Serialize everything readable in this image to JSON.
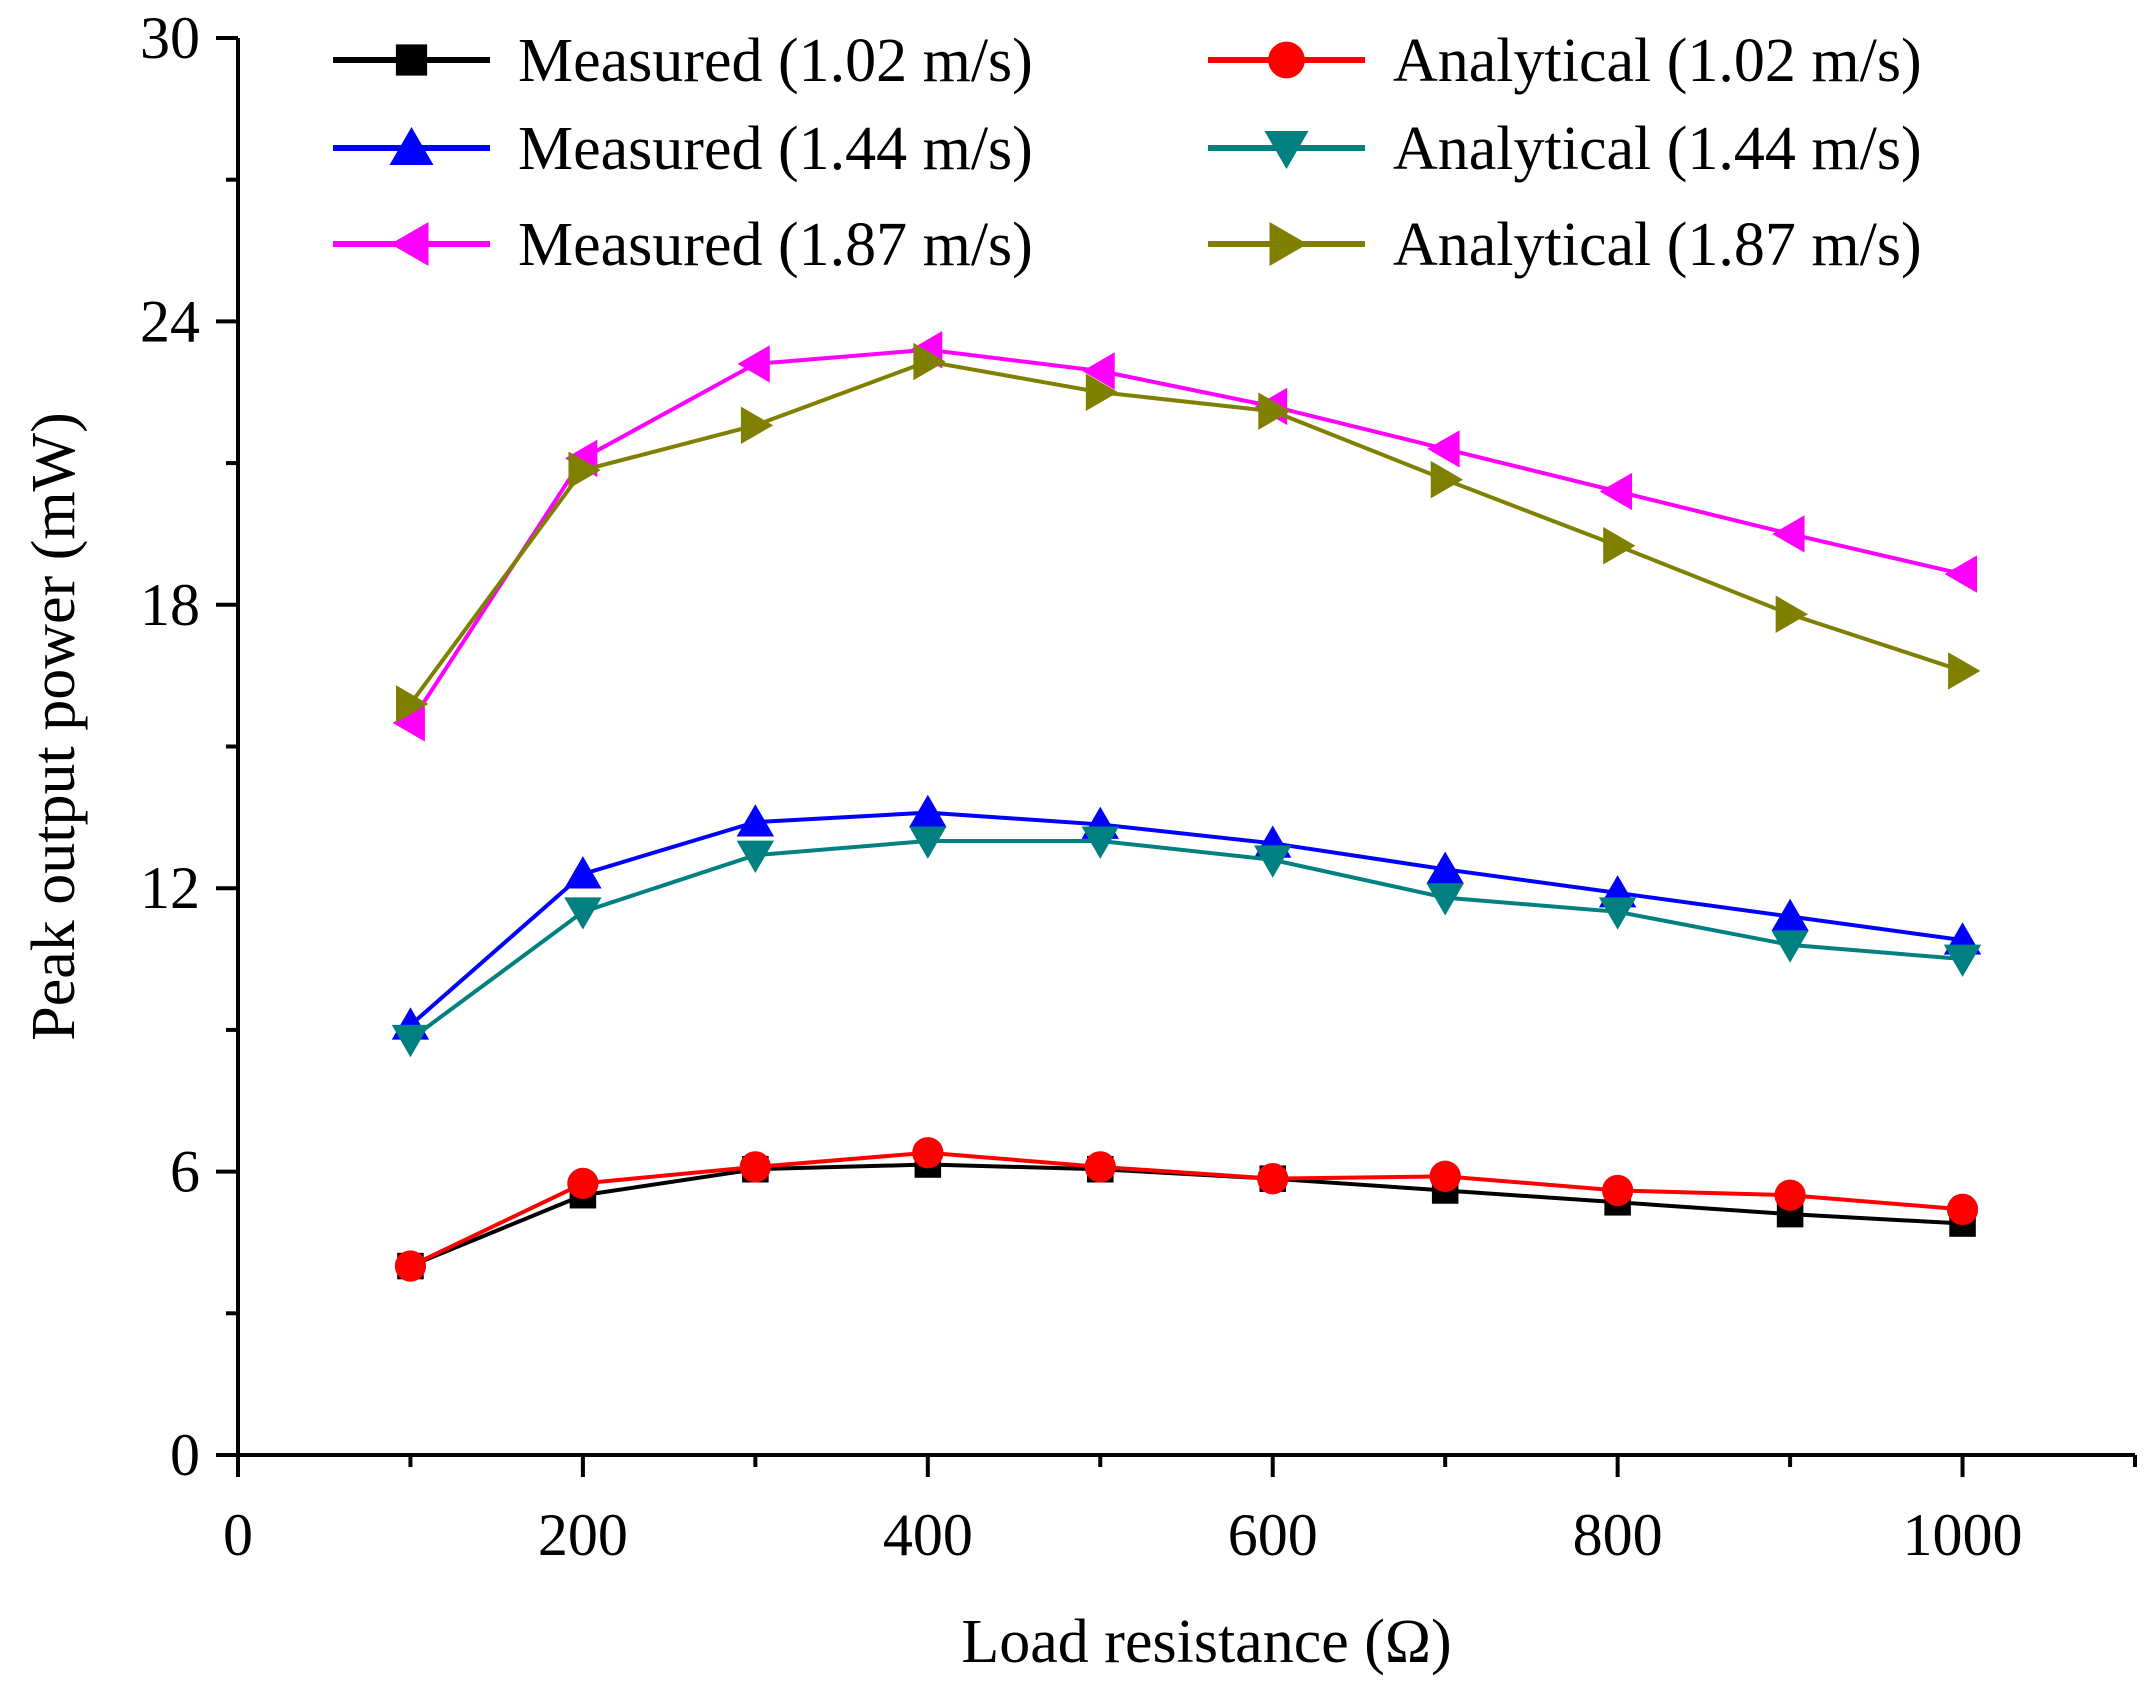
{
  "chart_data": {
    "type": "line",
    "title": "",
    "xlabel": "Load resistance (Ω)",
    "ylabel": "Peak output power (mW)",
    "xlim": [
      0,
      1100
    ],
    "ylim": [
      0,
      30
    ],
    "x_ticks": [
      0,
      200,
      400,
      600,
      800,
      1000
    ],
    "y_ticks": [
      0,
      6,
      12,
      18,
      24,
      30
    ],
    "x_tick_labels": [
      "0",
      "200",
      "400",
      "600",
      "800",
      "1000"
    ],
    "y_tick_labels": [
      "0",
      "6",
      "12",
      "18",
      "24",
      "30"
    ],
    "grid": false,
    "legend_position": "top",
    "x": [
      100,
      200,
      300,
      400,
      500,
      600,
      700,
      800,
      900,
      1000
    ],
    "series": [
      {
        "name": "Measured (1.02 m/s)",
        "color": "#000000",
        "marker": "square",
        "values": [
          4.0,
          5.5,
          6.05,
          6.15,
          6.05,
          5.85,
          5.6,
          5.35,
          5.1,
          4.9
        ]
      },
      {
        "name": "Analytical (1.02 m/s)",
        "color": "#ff0000",
        "marker": "circle",
        "values": [
          4.0,
          5.75,
          6.1,
          6.4,
          6.1,
          5.85,
          5.9,
          5.6,
          5.5,
          5.2
        ]
      },
      {
        "name": "Measured (1.44 m/s)",
        "color": "#0000ff",
        "marker": "triangle-up",
        "values": [
          9.1,
          12.3,
          13.4,
          13.6,
          13.35,
          12.95,
          12.4,
          11.9,
          11.4,
          10.9
        ]
      },
      {
        "name": "Analytical (1.44 m/s)",
        "color": "#008080",
        "marker": "triangle-down",
        "values": [
          8.8,
          11.5,
          12.7,
          13.0,
          13.0,
          12.6,
          11.8,
          11.5,
          10.8,
          10.5
        ]
      },
      {
        "name": "Measured (1.87 m/s)",
        "color": "#ff00ff",
        "marker": "triangle-left",
        "values": [
          15.5,
          21.1,
          23.1,
          23.4,
          22.95,
          22.2,
          21.3,
          20.4,
          19.5,
          18.65
        ]
      },
      {
        "name": "Analytical (1.87 m/s)",
        "color": "#808000",
        "marker": "triangle-right",
        "values": [
          15.9,
          20.85,
          21.8,
          23.15,
          22.5,
          22.1,
          20.65,
          19.25,
          17.8,
          16.6
        ]
      }
    ]
  }
}
